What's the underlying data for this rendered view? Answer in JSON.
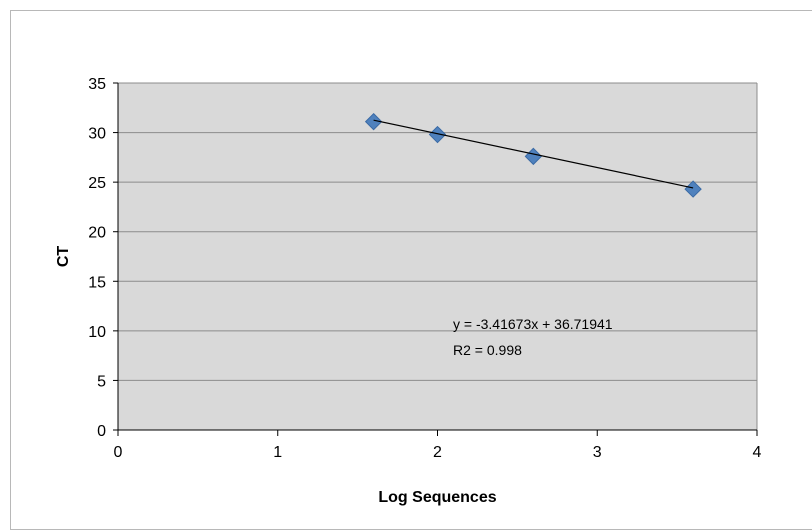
{
  "chart_data": {
    "type": "scatter",
    "title": "",
    "xlabel": "Log Sequences",
    "ylabel": "CT",
    "xlim": [
      0,
      4
    ],
    "ylim": [
      0,
      35
    ],
    "x_ticks": [
      "0",
      "1",
      "2",
      "3",
      "4"
    ],
    "y_ticks": [
      "0",
      "5",
      "10",
      "15",
      "20",
      "25",
      "30",
      "35"
    ],
    "grid": "horizontal",
    "legend": "none",
    "series": [
      {
        "points": [
          {
            "x": 1.6,
            "y": 31.1
          },
          {
            "x": 2.0,
            "y": 29.8
          },
          {
            "x": 2.6,
            "y": 27.6
          },
          {
            "x": 3.6,
            "y": 24.3
          }
        ],
        "color": "#4f81bd"
      }
    ],
    "trendline": {
      "x_range": [
        1.6,
        3.6
      ],
      "slope": -3.41673,
      "intercept": 36.71941,
      "color": "#000000"
    },
    "annotations": {
      "equation": "y = -3.41673x  + 36.71941",
      "r2": "R2  = 0.998"
    },
    "plot_bg": "#d9d9d9",
    "gridline_color": "#8c8c8c"
  }
}
